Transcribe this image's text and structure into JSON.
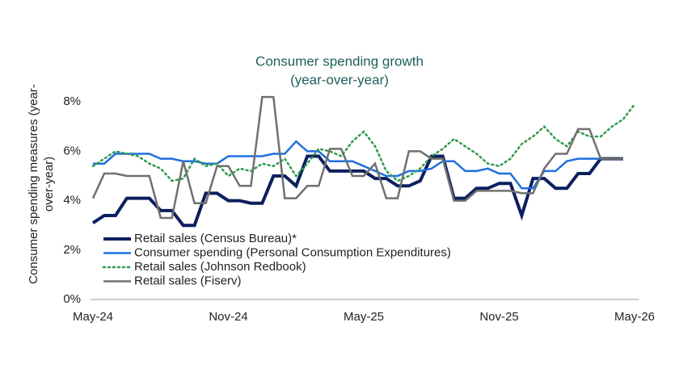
{
  "chart_data": {
    "type": "line",
    "title": [
      "Consumer spending growth",
      "(year-over-year)"
    ],
    "y_label": [
      "Consumer spending measures (year-",
      "over-year)"
    ],
    "categories": [
      "May-24",
      null,
      null,
      null,
      null,
      null,
      null,
      null,
      null,
      null,
      null,
      null,
      "Nov-24",
      null,
      null,
      null,
      null,
      null,
      null,
      null,
      null,
      null,
      null,
      null,
      "May-25",
      null,
      null,
      null,
      null,
      null,
      null,
      null,
      null,
      null,
      null,
      null,
      "Nov-25",
      null,
      null,
      null,
      null,
      null,
      null,
      null,
      null,
      null,
      null,
      null,
      "May-26"
    ],
    "ylim": [
      0,
      8.4
    ],
    "yticks": [
      {
        "value": 0,
        "label": "0%"
      },
      {
        "value": 2,
        "label": "2%"
      },
      {
        "value": 4,
        "label": "4%"
      },
      {
        "value": 6,
        "label": "6%"
      },
      {
        "value": 8,
        "label": "8%"
      }
    ],
    "series": [
      {
        "name": "Retail sales (Census Bureau)*",
        "color": "#0c1f5e",
        "style": "solid",
        "width": 4,
        "values": [
          3.1,
          3.4,
          3.4,
          4.1,
          4.1,
          4.1,
          3.6,
          3.6,
          3.0,
          3.0,
          4.3,
          4.3,
          4.0,
          4.0,
          3.9,
          3.9,
          5.0,
          5.0,
          4.6,
          5.8,
          5.8,
          5.2,
          5.2,
          5.2,
          5.2,
          4.9,
          4.9,
          4.6,
          4.6,
          4.8,
          5.8,
          5.8,
          4.1,
          4.1,
          4.5,
          4.5,
          4.7,
          4.7,
          3.4,
          4.9,
          4.9,
          4.5,
          4.5,
          5.1,
          5.1,
          5.7,
          5.7,
          5.7,
          null
        ]
      },
      {
        "name": "Consumer spending (Personal Consumption Expenditures)",
        "color": "#1f6fe0",
        "style": "solid",
        "width": 2.5,
        "values": [
          5.5,
          5.5,
          5.9,
          5.9,
          5.9,
          5.9,
          5.7,
          5.7,
          5.6,
          5.6,
          5.5,
          5.5,
          5.8,
          5.8,
          5.8,
          5.8,
          5.9,
          5.9,
          6.4,
          6.0,
          6.0,
          5.6,
          5.6,
          5.6,
          5.4,
          5.2,
          5.0,
          5.0,
          5.2,
          5.2,
          5.3,
          5.6,
          5.6,
          5.2,
          5.2,
          5.3,
          5.1,
          5.1,
          4.5,
          4.5,
          5.2,
          5.2,
          5.6,
          5.7,
          5.7,
          5.7,
          null,
          null,
          null
        ]
      },
      {
        "name": "Retail sales (Johnson Redbook)",
        "color": "#2e9b4a",
        "style": "dotted",
        "width": 2.5,
        "values": [
          5.4,
          5.7,
          6.0,
          5.9,
          5.8,
          5.5,
          5.3,
          4.8,
          4.9,
          5.7,
          5.4,
          5.5,
          5.0,
          5.3,
          5.2,
          5.5,
          5.4,
          5.7,
          5.0,
          5.5,
          6.1,
          6.0,
          5.8,
          6.4,
          6.8,
          6.2,
          5.2,
          4.8,
          5.0,
          5.3,
          5.8,
          6.1,
          6.5,
          6.2,
          5.9,
          5.5,
          5.4,
          5.7,
          6.3,
          6.6,
          7.0,
          6.5,
          6.2,
          6.8,
          6.6,
          6.6,
          7.0,
          7.3,
          7.9
        ]
      },
      {
        "name": "Retail sales (Fiserv)",
        "color": "#707070",
        "style": "solid",
        "width": 2.5,
        "values": [
          4.1,
          5.1,
          5.1,
          5.0,
          5.0,
          5.0,
          3.3,
          3.3,
          5.6,
          3.9,
          3.9,
          5.4,
          5.4,
          4.6,
          4.6,
          8.2,
          8.2,
          4.1,
          4.1,
          4.6,
          4.6,
          6.1,
          6.1,
          5.0,
          5.0,
          5.5,
          4.1,
          4.1,
          6.0,
          6.0,
          5.7,
          5.7,
          4.0,
          4.0,
          4.4,
          4.4,
          4.4,
          4.4,
          4.3,
          4.3,
          5.3,
          5.9,
          5.9,
          6.9,
          6.9,
          5.7,
          5.7,
          5.7,
          null
        ]
      }
    ]
  }
}
